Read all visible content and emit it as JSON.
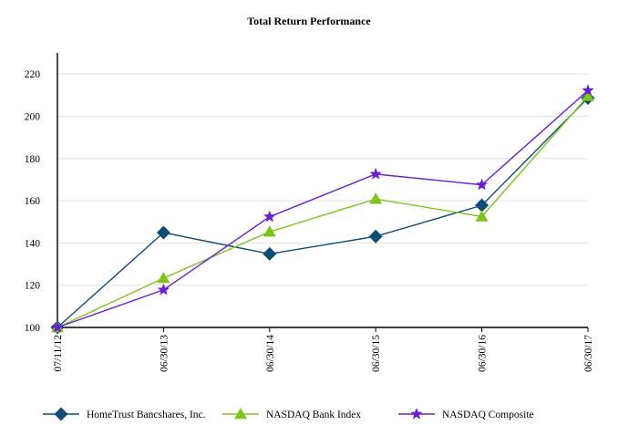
{
  "chart_data": {
    "type": "line",
    "title": "Total Return Performance",
    "xlabel": "",
    "ylabel": "",
    "categories": [
      "07/11/12",
      "06/30/13",
      "06/30/14",
      "06/30/15",
      "06/30/16",
      "06/30/17"
    ],
    "ylim": [
      100,
      230
    ],
    "yticks": [
      100,
      120,
      140,
      160,
      180,
      200,
      220
    ],
    "grid": true,
    "legend_position": "bottom",
    "series": [
      {
        "name": "HomeTrust Bancshares, Inc.",
        "color": "#0e4e75",
        "marker": "diamond",
        "values": [
          100.0,
          144.9,
          134.8,
          143.1,
          157.8,
          208.6
        ]
      },
      {
        "name": "NASDAQ Bank Index",
        "color": "#7fc31c",
        "marker": "triangle",
        "values": [
          100.0,
          123.3,
          145.3,
          160.8,
          152.5,
          209.5
        ]
      },
      {
        "name": "NASDAQ Composite",
        "color": "#6a1fd1",
        "marker": "star",
        "values": [
          100.0,
          117.8,
          152.4,
          172.6,
          167.5,
          212.2
        ]
      }
    ]
  }
}
